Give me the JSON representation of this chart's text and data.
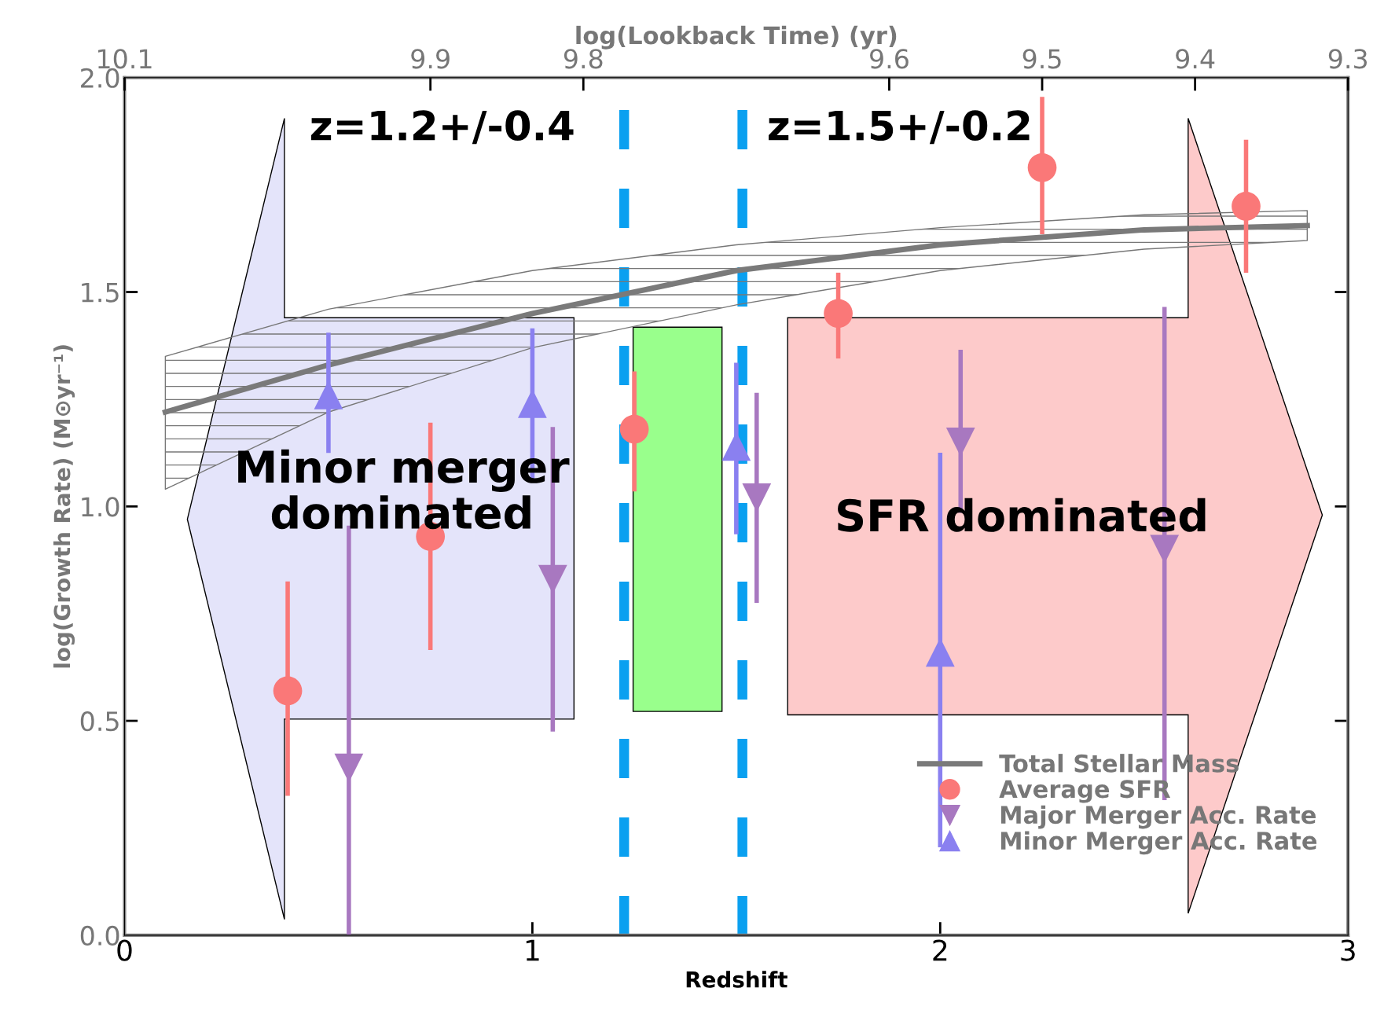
{
  "chart_data": {
    "type": "scatter",
    "xlabel": "Redshift",
    "ylabel": "log(Growth Rate) (M⊙yr⁻¹)",
    "x2label": "log(Lookback Time) (yr)",
    "xlim": [
      0,
      3
    ],
    "xticks": [
      0,
      1,
      2,
      3
    ],
    "ylim": [
      0,
      2
    ],
    "yticks": [
      {
        "value": 0,
        "label": "0.0"
      },
      {
        "value": 0.5,
        "label": "0.5"
      },
      {
        "value": 1,
        "label": "1.0"
      },
      {
        "value": 1.5,
        "label": "1.5"
      },
      {
        "value": 2,
        "label": "2.0"
      }
    ],
    "x2lim": [
      10.1,
      9.3
    ],
    "x2ticks": [
      10.1,
      9.9,
      9.8,
      9.6,
      9.5,
      9.4,
      9.3
    ],
    "series": [
      {
        "name": "Total Stellar Mass",
        "type": "line",
        "color": "#7a7a7a",
        "marker": "none",
        "x": [
          0.1,
          0.5,
          1.0,
          1.5,
          2.0,
          2.5,
          2.9
        ],
        "values": [
          1.22,
          1.33,
          1.45,
          1.55,
          1.61,
          1.645,
          1.655
        ],
        "lower": [
          1.04,
          1.22,
          1.37,
          1.47,
          1.55,
          1.6,
          1.62
        ],
        "upper": [
          1.35,
          1.46,
          1.55,
          1.61,
          1.65,
          1.68,
          1.69
        ]
      },
      {
        "name": "Average SFR",
        "color": "#fa7878",
        "marker": "circle",
        "x": [
          0.4,
          0.75,
          1.25,
          1.75,
          2.25,
          2.75
        ],
        "values": [
          0.57,
          0.93,
          1.18,
          1.45,
          1.79,
          1.7
        ],
        "errors": [
          [
            0.33,
            0.82
          ],
          [
            0.67,
            1.19
          ],
          [
            1.04,
            1.31
          ],
          [
            1.35,
            1.54
          ],
          [
            1.64,
            1.95
          ],
          [
            1.55,
            1.85
          ]
        ]
      },
      {
        "name": "Major Merger Acc. Rate",
        "color": "#a878c0",
        "marker": "triangle_down",
        "x": [
          0.55,
          1.05,
          1.55,
          2.05,
          2.55
        ],
        "values": [
          0.39,
          0.83,
          1.02,
          1.15,
          0.9
        ],
        "errors": [
          [
            0.0,
            0.95
          ],
          [
            0.48,
            1.18
          ],
          [
            0.78,
            1.26
          ],
          [
            0.99,
            1.36
          ],
          [
            0.32,
            1.46
          ]
        ]
      },
      {
        "name": "Minor Merger Acc. Rate",
        "color": "#8a80f0",
        "marker": "triangle",
        "x": [
          0.5,
          1.0,
          1.5,
          2.0
        ],
        "values": [
          1.26,
          1.24,
          1.14,
          0.66
        ],
        "errors": [
          [
            1.13,
            1.4
          ],
          [
            1.07,
            1.41
          ],
          [
            0.94,
            1.33
          ],
          [
            0.21,
            1.12
          ]
        ]
      }
    ],
    "ref_lines": [
      {
        "axis": "x",
        "value": 1.225,
        "label": "z=1.2+/-0.4",
        "color": "#0aa0f0",
        "line_style": "dashed"
      },
      {
        "axis": "x",
        "value": 1.515,
        "label": "z=1.5+/-0.2",
        "color": "#0aa0f0",
        "line_style": "dashed"
      }
    ],
    "annotations": [
      "Minor merger\ndominated",
      "SFR dominated"
    ],
    "legend": "bottom right",
    "grid": false
  }
}
